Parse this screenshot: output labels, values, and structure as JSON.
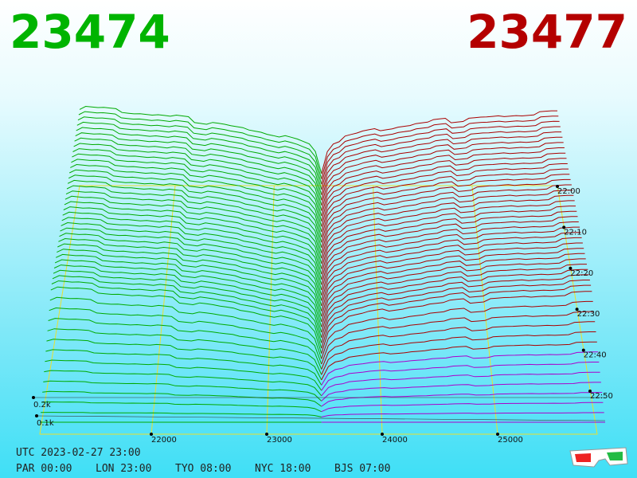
{
  "header": {
    "bid": 23474,
    "ask": 23477
  },
  "price_axis": {
    "ticks": [
      22000,
      23000,
      24000,
      25000
    ]
  },
  "time_axis": {
    "ticks": [
      "22:00",
      "22:10",
      "22:20",
      "22:30",
      "22:40",
      "22:50"
    ]
  },
  "volume_axis": {
    "ticks": [
      "0.2k",
      "0.1k"
    ]
  },
  "footer": {
    "utc": "UTC 2023-02-27 23:00",
    "clocks": [
      "PAR 00:00",
      "LON 23:00",
      "TYO 08:00",
      "NYC 18:00",
      "BJS 07:00"
    ]
  }
}
